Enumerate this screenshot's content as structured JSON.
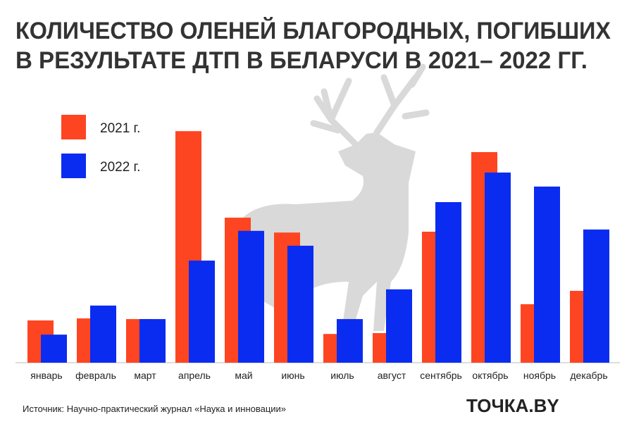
{
  "chart_data": {
    "type": "bar",
    "title_lines": [
      "КОЛИЧЕСТВО ОЛЕНЕЙ БЛАГОРОДНЫХ, ПОГИБШИХ",
      "В РЕЗУЛЬТАТЕ ДТП В БЕЛАРУСИ В 2021– 2022 ГГ."
    ],
    "categories": [
      "январь",
      "февраль",
      "март",
      "апрель",
      "май",
      "июнь",
      "июль",
      "август",
      "сентябрь",
      "октябрь",
      "ноябрь",
      "декабрь"
    ],
    "series": [
      {
        "name": "2021 г.",
        "color": "#fe4521",
        "values": [
          12.5,
          13.1,
          12.9,
          68.5,
          42.9,
          38.5,
          8.5,
          8.75,
          38.75,
          62.3,
          17.3,
          21.25
        ]
      },
      {
        "name": "2022 г.",
        "color": "#0a2cf0",
        "values": [
          8.3,
          16.9,
          12.9,
          30.2,
          39,
          34.6,
          12.9,
          21.7,
          47.5,
          56.25,
          52.1,
          39.4
        ]
      }
    ],
    "ylim": [
      0,
      70
    ],
    "legend": "top-left",
    "source": "Источник: Научно-практический журнал «Наука и инновации»",
    "logo": "ТОЧКА.BY"
  }
}
